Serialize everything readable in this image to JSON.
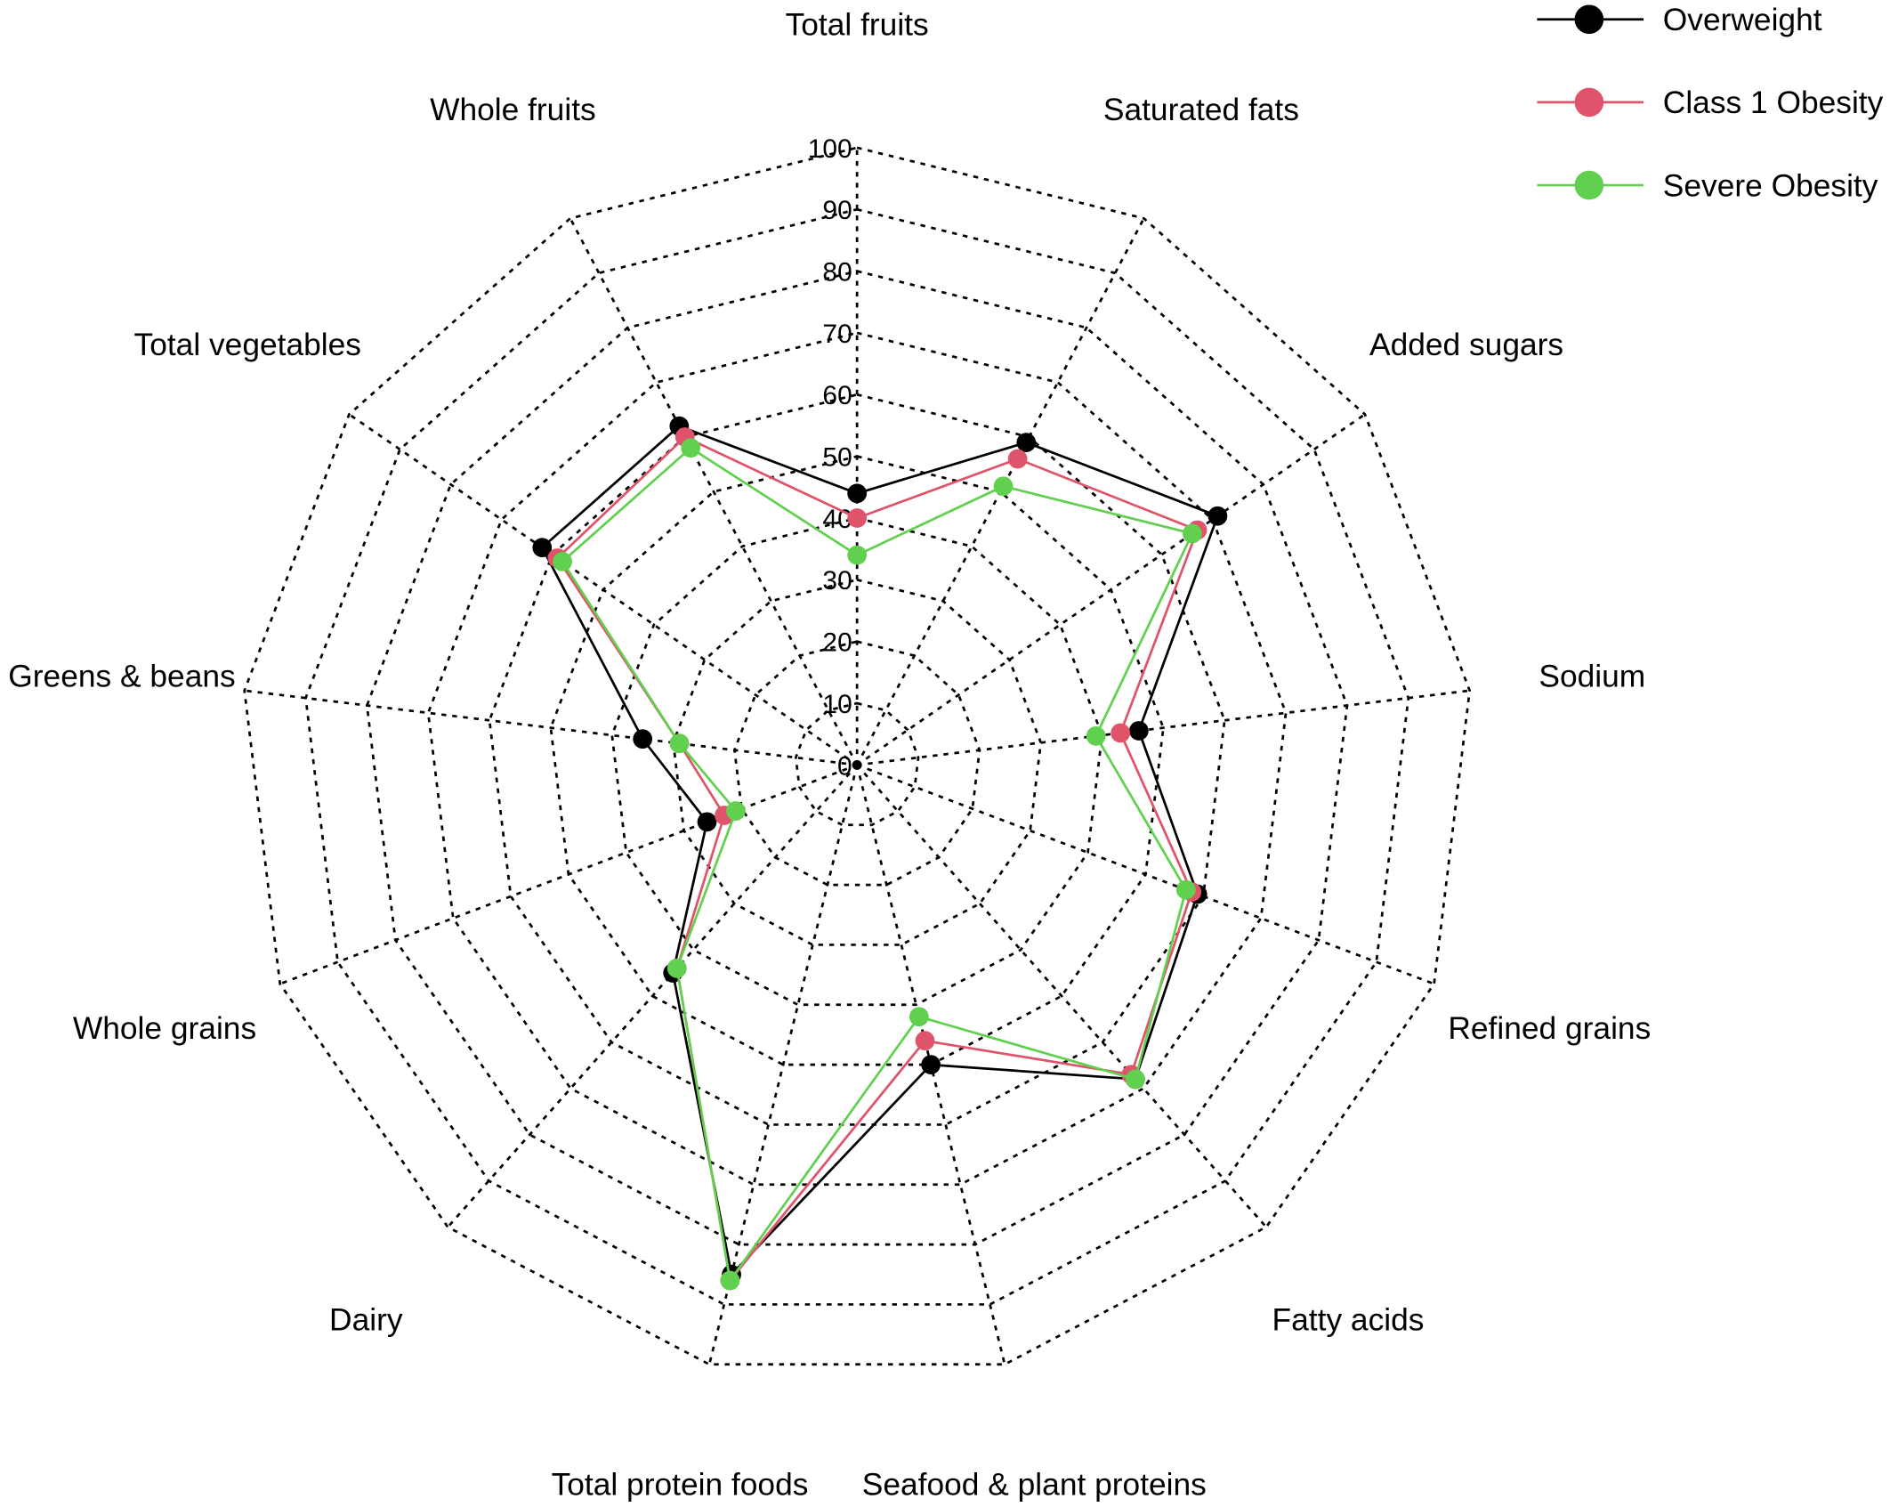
{
  "chart_data": {
    "type": "radar",
    "axes": [
      "Total fruits",
      "Saturated fats",
      "Added sugars",
      "Sodium",
      "Refined grains",
      "Fatty acids",
      "Seafood & plant proteins",
      "Total protein foods",
      "Dairy",
      "Whole grains",
      "Greens & beans",
      "Total vegetables",
      "Whole fruits"
    ],
    "rlim": [
      0,
      100
    ],
    "ticks": [
      "0",
      "10",
      "20",
      "30",
      "40",
      "50",
      "60",
      "70",
      "80",
      "90",
      "100"
    ],
    "grid": true,
    "legend_position": "top-right",
    "series": [
      {
        "name": "Overweight",
        "color": "#000000",
        "values": [
          44,
          59,
          71,
          46,
          59,
          68,
          50,
          85,
          45,
          26,
          35,
          62,
          62
        ]
      },
      {
        "name": "Class 1 Obesity",
        "color": "#DF536B",
        "values": [
          40,
          56,
          67,
          43,
          58,
          67,
          46,
          86,
          44,
          23,
          29,
          59,
          60
        ]
      },
      {
        "name": "Severe Obesity",
        "color": "#61D04F",
        "values": [
          34,
          51,
          66,
          39,
          57,
          68,
          42,
          86,
          44,
          21,
          29,
          58,
          58
        ]
      }
    ]
  }
}
